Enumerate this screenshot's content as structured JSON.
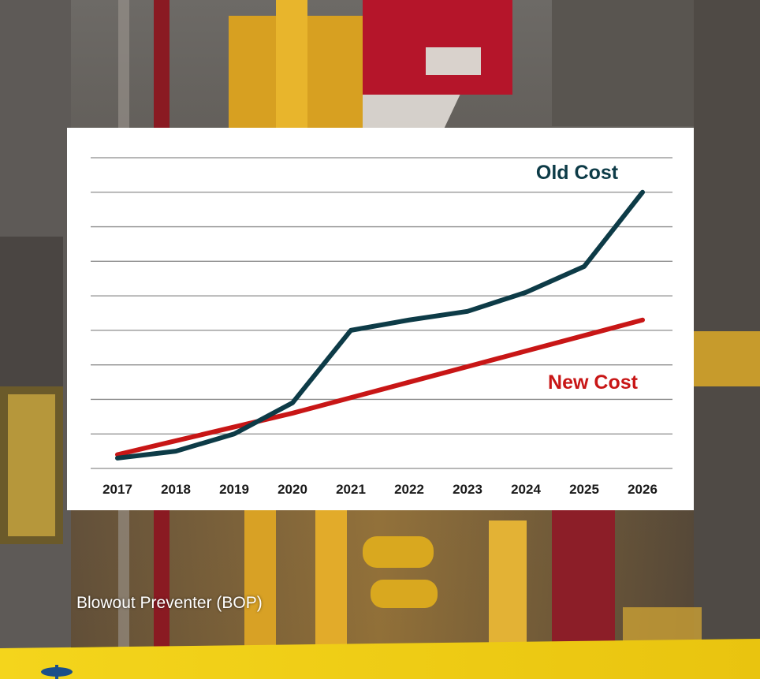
{
  "caption": "Blowout Preventer (BOP)",
  "colors": {
    "old_cost": "#0d3b47",
    "new_cost": "#c81616",
    "gridline": "#8c8c8c",
    "banner": "#f2d21a",
    "logo": "#1b4f8a"
  },
  "chart_data": {
    "type": "line",
    "categories": [
      "2017",
      "2018",
      "2019",
      "2020",
      "2021",
      "2022",
      "2023",
      "2024",
      "2025",
      "2026"
    ],
    "series": [
      {
        "name": "Old Cost",
        "values": [
          0.3,
          0.5,
          1.0,
          1.9,
          4.0,
          4.3,
          4.55,
          5.1,
          5.85,
          8.0
        ]
      },
      {
        "name": "New Cost",
        "values": [
          0.4,
          0.8,
          1.2,
          1.6,
          2.05,
          2.5,
          2.95,
          3.4,
          3.85,
          4.3
        ]
      }
    ],
    "ylim": [
      0,
      9
    ],
    "y_ticks_shown": false,
    "grid": true,
    "title": "",
    "xlabel": "",
    "ylabel": ""
  }
}
